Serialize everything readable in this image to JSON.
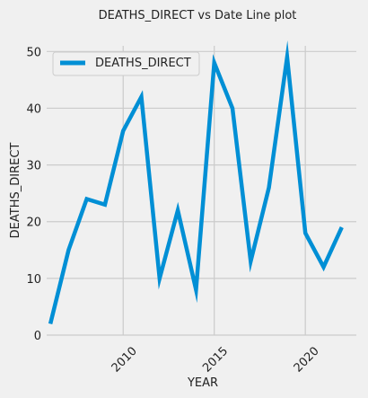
{
  "chart_data": {
    "type": "line",
    "title": "DEATHS_DIRECT vs Date Line plot",
    "xlabel": "YEAR",
    "ylabel": "DEATHS_DIRECT",
    "xlim": [
      2005.8,
      2022.8
    ],
    "ylim": [
      0,
      51
    ],
    "xticks": [
      2010,
      2015,
      2020
    ],
    "yticks": [
      0,
      10,
      20,
      30,
      40,
      50
    ],
    "grid": true,
    "legend_position": "top-left",
    "series": [
      {
        "name": "DEATHS_DIRECT",
        "color": "#008fd5",
        "x": [
          2006,
          2007,
          2008,
          2009,
          2010,
          2011,
          2012,
          2013,
          2014,
          2015,
          2016,
          2017,
          2018,
          2019,
          2020,
          2021,
          2022
        ],
        "y": [
          2,
          15,
          24,
          23,
          36,
          42,
          10,
          22,
          8,
          48,
          40,
          13,
          26,
          49,
          18,
          12,
          19
        ]
      }
    ]
  }
}
